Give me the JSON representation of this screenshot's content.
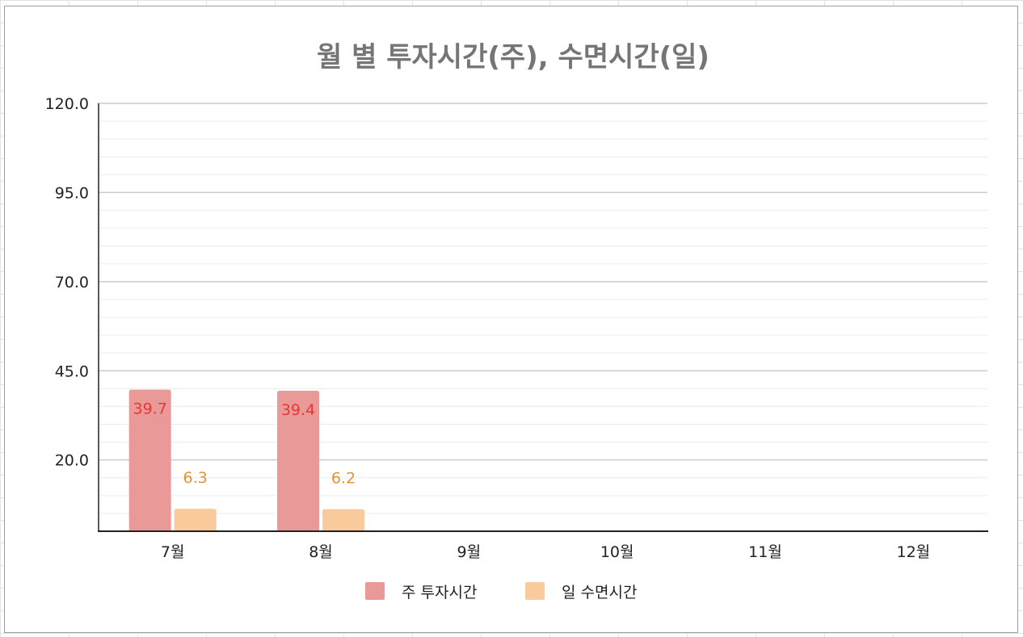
{
  "chart_data": {
    "type": "bar",
    "title": "월 별 투자시간(주), 수면시간(일)",
    "categories": [
      "7월",
      "8월",
      "9월",
      "10월",
      "11월",
      "12월"
    ],
    "series": [
      {
        "name": "주 투자시간",
        "values": [
          39.7,
          39.4,
          null,
          null,
          null,
          null
        ],
        "labels": [
          "39.7",
          "39.4",
          "",
          "",
          "",
          ""
        ],
        "color": "#ea9999",
        "label_color": "#e53935"
      },
      {
        "name": "일 수면시간",
        "values": [
          6.3,
          6.2,
          null,
          null,
          null,
          null
        ],
        "labels": [
          "6.3",
          "6.2",
          "",
          "",
          "",
          ""
        ],
        "color": "#f9cb9c",
        "label_color": "#e69138"
      }
    ],
    "ylim": [
      0,
      120
    ],
    "yticks": [
      "20.0",
      "45.0",
      "70.0",
      "95.0",
      "120.0"
    ],
    "ytick_values": [
      20,
      45,
      70,
      95,
      120
    ],
    "minor_gridline_step": 5,
    "grid": true,
    "legend_position": "bottom",
    "xlabel": "",
    "ylabel": ""
  }
}
